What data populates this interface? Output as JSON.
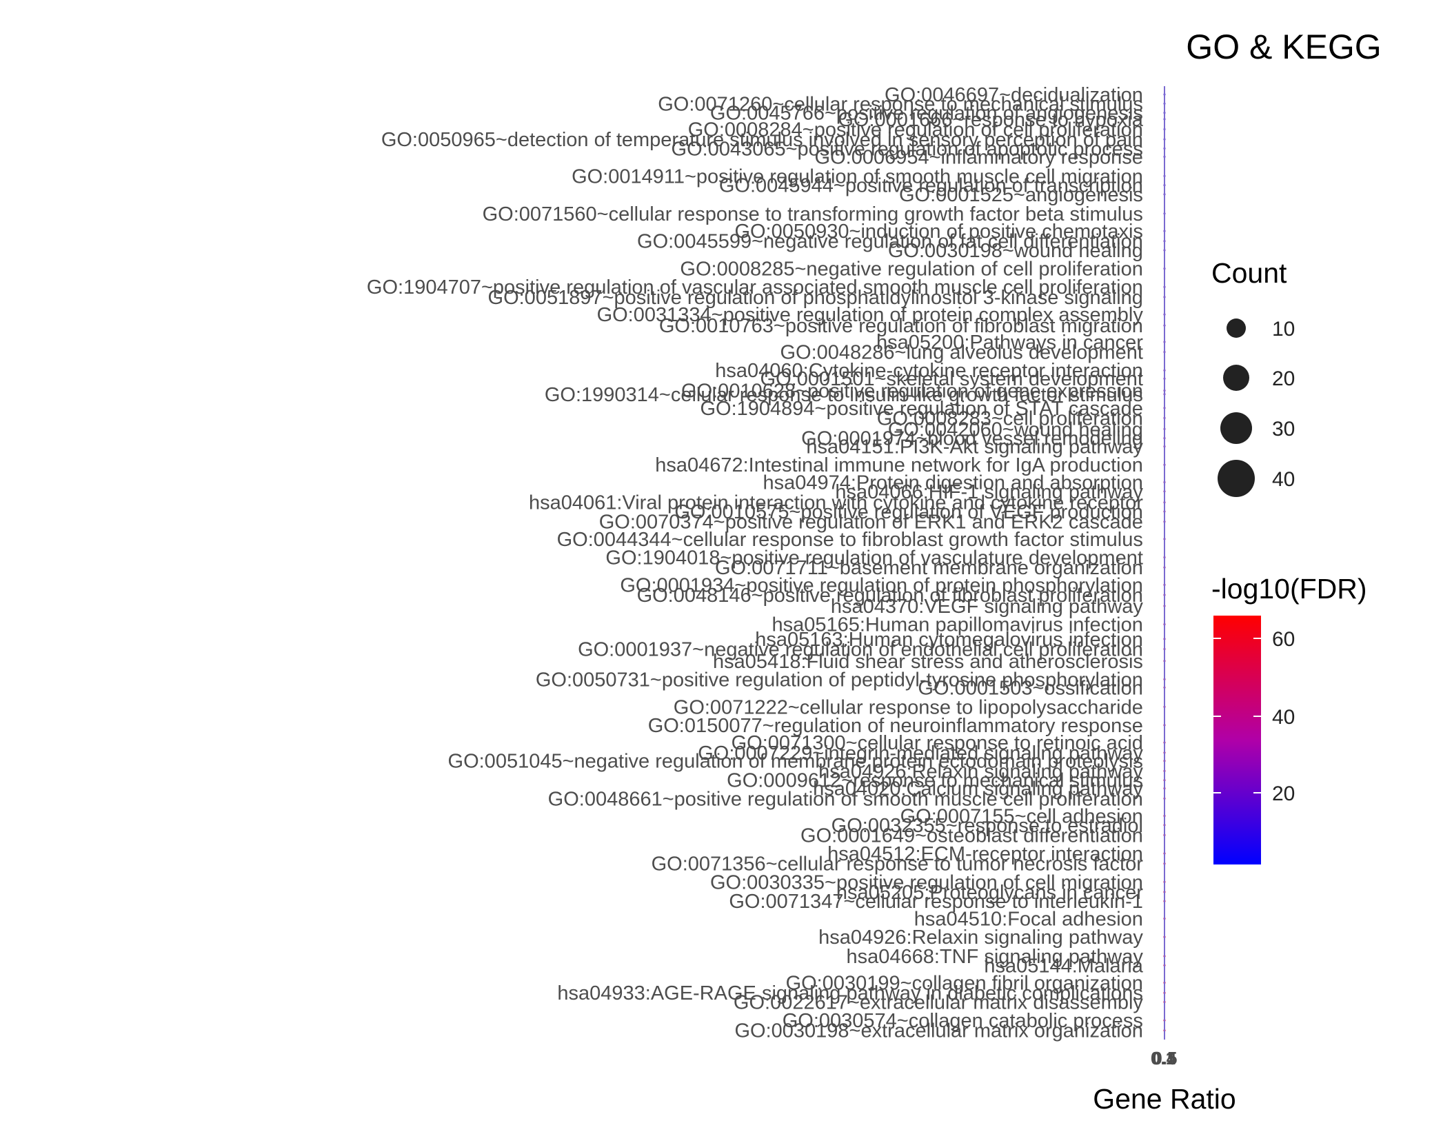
{
  "chart_data": {
    "type": "scatter",
    "title": "GO & KEGG",
    "xlabel": "Gene Ratio",
    "ylabel": "",
    "x_ticks": [
      "0.1",
      "0.4",
      "0.5"
    ],
    "xlim": [
      0.1,
      0.5
    ],
    "grid": false,
    "legend_position": "right",
    "size_legend": {
      "title": "Count",
      "values": [
        10,
        20,
        30,
        40
      ]
    },
    "color_legend": {
      "title": "-log10(FDR)",
      "ticks": [
        20,
        40,
        60
      ],
      "low_color": "#0000ff",
      "high_color": "#ff0000"
    },
    "categories": [
      "GO:0046697~decidualization",
      "GO:0071260~cellular response to mechanical stimulus",
      "GO:0045766~positive regulation of angiogenesis",
      "GO:0001666~response to hypoxia",
      "GO:0008284~positive regulation of cell proliferation",
      "GO:0050965~detection of temperature stimulus involved in sensory perception of pain",
      "GO:0043065~positive regulation of apoptotic process",
      "GO:0006954~inflammatory response",
      "GO:0014911~positive regulation of smooth muscle cell migration",
      "GO:0045944~positive regulation of transcription",
      "GO:0001525~angiogenesis",
      "GO:0071560~cellular response to transforming growth factor beta stimulus",
      "GO:0050930~induction of positive chemotaxis",
      "GO:0045599~negative regulation of fat cell differentiation",
      "GO:0030198~wound healing",
      "GO:0008285~negative regulation of cell proliferation",
      "GO:1904707~positive regulation of vascular associated smooth muscle cell proliferation",
      "GO:0051897~positive regulation of phosphatidylinositol 3-kinase signaling",
      "GO:0031334~positive regulation of protein complex assembly",
      "GO:0010763~positive regulation of fibroblast migration",
      "hsa05200:Pathways in cancer",
      "GO:0048286~lung alveolus development",
      "hsa04060:Cytokine-cytokine receptor interaction",
      "GO:0001501~skeletal system development",
      "GO:1990314~cellular response to insulin-like growth factor stimulus",
      "GO:0010628~positive regulation of gene expression",
      "GO:1904894~positive regulation of STAT cascade",
      "GO:0008283~cell proliferation",
      "GO:0042060~wound healing",
      "GO:0001974~blood vessel remodeling",
      "hsa04151:PI3K-Akt signaling pathway",
      "hsa04672:Intestinal immune network for IgA production",
      "hsa04974:Protein digestion and absorption",
      "hsa04066:HIF-1 signaling pathway",
      "hsa04061:Viral protein interaction with cytokine and cytokine receptor",
      "GO:0010575~positive regulation of VEGF production",
      "GO:0070374~positive regulation of ERK1 and ERK2 cascade",
      "GO:0044344~cellular response to fibroblast growth factor stimulus",
      "GO:1904018~positive regulation of vasculature development",
      "GO:0071711~basement membrane organization",
      "GO:0001934~positive regulation of protein phosphorylation",
      "GO:0048146~positive regulation of fibroblast proliferation",
      "hsa04370:VEGF signaling pathway",
      "hsa05165:Human papillomavirus infection",
      "hsa05163:Human cytomegalovirus infection",
      "GO:0001937~negative regulation of endothelial cell proliferation",
      "hsa05418:Fluid shear stress and atherosclerosis",
      "GO:0050731~positive regulation of peptidyl-tyrosine phosphorylation",
      "GO:0001503~ossification",
      "GO:0071222~cellular response to lipopolysaccharide",
      "GO:0150077~regulation of neuroinflammatory response",
      "GO:0071300~cellular response to retinoic acid",
      "GO:0007229~integrin-mediated signaling pathway",
      "GO:0051045~negative regulation of membrane protein ectodomain proteolysis",
      "hsa04926:Relaxin signaling pathway",
      "GO:0009612~response to mechanical stimulus",
      "hsa04020:Calcium signaling pathway",
      "GO:0048661~positive regulation of smooth muscle cell proliferation",
      "GO:0007155~cell adhesion",
      "GO:0032355~response to estradiol",
      "GO:0001649~osteoblast differentiation",
      "hsa04512:ECM-receptor interaction",
      "GO:0071356~cellular response to tumor necrosis factor",
      "GO:0030335~positive regulation of cell migration",
      "hsa05205:Proteoglycans in cancer",
      "GO:0071347~cellular response to interleukin-1",
      "hsa04510:Focal adhesion",
      "hsa04926:Relaxin signaling pathway",
      "hsa04668:TNF signaling pathway",
      "hsa05144:Malaria",
      "GO:0030199~collagen fibril organization",
      "hsa04933:AGE-RAGE signaling pathway in diabetic complications",
      "GO:0022617~extracellular matrix disassembly",
      "GO:0030574~collagen catabolic process",
      "GO:0030198~extracellular matrix organization"
    ],
    "label_positions": [
      [
        1250,
        103
      ],
      [
        1250,
        113
      ],
      [
        1250,
        123
      ],
      [
        1250,
        130
      ],
      [
        1250,
        141
      ],
      [
        1250,
        152
      ],
      [
        1250,
        162
      ],
      [
        1250,
        171
      ],
      [
        1250,
        192
      ],
      [
        1250,
        202
      ],
      [
        1250,
        212
      ],
      [
        1250,
        233
      ],
      [
        1250,
        252
      ],
      [
        1250,
        263
      ],
      [
        1250,
        273
      ],
      [
        1250,
        293
      ],
      [
        1250,
        313
      ],
      [
        1250,
        324
      ],
      [
        1250,
        343
      ],
      [
        1250,
        355
      ],
      [
        1250,
        373
      ],
      [
        1250,
        384
      ],
      [
        1250,
        404
      ],
      [
        1250,
        413
      ],
      [
        1250,
        430
      ],
      [
        1250,
        426
      ],
      [
        1250,
        445
      ],
      [
        1250,
        456
      ],
      [
        1250,
        468
      ],
      [
        1250,
        478
      ],
      [
        1250,
        487
      ],
      [
        1250,
        507
      ],
      [
        1250,
        526
      ],
      [
        1250,
        536
      ],
      [
        1250,
        548
      ],
      [
        1250,
        558
      ],
      [
        1250,
        569
      ],
      [
        1250,
        588
      ],
      [
        1250,
        608
      ],
      [
        1250,
        619
      ],
      [
        1250,
        638
      ],
      [
        1250,
        649
      ],
      [
        1250,
        661
      ],
      [
        1250,
        681
      ],
      [
        1250,
        697
      ],
      [
        1250,
        708
      ],
      [
        1250,
        721
      ],
      [
        1250,
        741
      ],
      [
        1250,
        750
      ],
      [
        1250,
        771
      ],
      [
        1250,
        791
      ],
      [
        1250,
        810
      ],
      [
        1250,
        821
      ],
      [
        1250,
        830
      ],
      [
        1250,
        841
      ],
      [
        1250,
        851
      ],
      [
        1250,
        860
      ],
      [
        1250,
        871
      ],
      [
        1250,
        890
      ],
      [
        1250,
        900
      ],
      [
        1250,
        911
      ],
      [
        1250,
        931
      ],
      [
        1250,
        942
      ],
      [
        1250,
        962
      ],
      [
        1250,
        973
      ],
      [
        1250,
        983
      ],
      [
        1250,
        1002
      ],
      [
        1250,
        1022
      ],
      [
        1250,
        1043
      ],
      [
        1250,
        1053
      ],
      [
        1250,
        1072
      ],
      [
        1250,
        1083
      ],
      [
        1250,
        1093
      ],
      [
        1250,
        1113
      ],
      [
        1250,
        1124
      ]
    ],
    "x": [
      0.1,
      0.1,
      0.1,
      0.1,
      0.1,
      0.1,
      0.1,
      0.1,
      0.1,
      0.1,
      0.1,
      0.1,
      0.1,
      0.1,
      0.1,
      0.1,
      0.1,
      0.1,
      0.1,
      0.1,
      0.1,
      0.1,
      0.1,
      0.1,
      0.1,
      0.1,
      0.1,
      0.1,
      0.1,
      0.1,
      0.1,
      0.1,
      0.1,
      0.1,
      0.1,
      0.1,
      0.1,
      0.1,
      0.1,
      0.1,
      0.1,
      0.1,
      0.1,
      0.1,
      0.1,
      0.1,
      0.1,
      0.1,
      0.1,
      0.1,
      0.1,
      0.1,
      0.1,
      0.1,
      0.1,
      0.1,
      0.1,
      0.1,
      0.1,
      0.1,
      0.1,
      0.1,
      0.1,
      0.1,
      0.1,
      0.1,
      0.1,
      0.1,
      0.1,
      0.1,
      0.1,
      0.1,
      0.1,
      0.1,
      0.1
    ]
  }
}
